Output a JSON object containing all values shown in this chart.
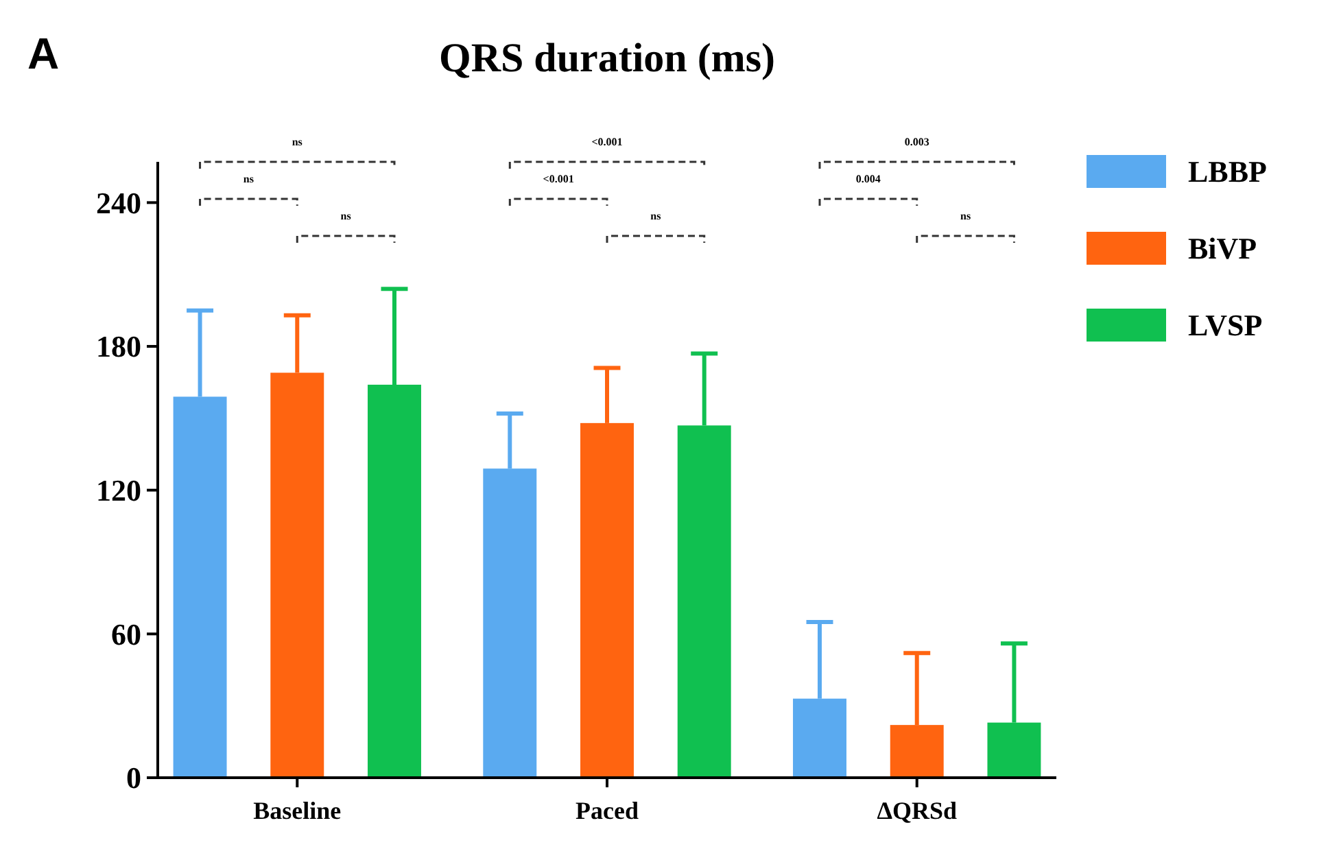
{
  "chart_data": {
    "type": "bar",
    "title": "QRS duration (ms)",
    "categories": [
      "Baseline",
      "Paced",
      "ΔQRSd"
    ],
    "series": [
      {
        "name": "LBBP",
        "color": "#5aaaf0",
        "values": [
          159,
          129,
          33
        ],
        "errors": [
          [
            159,
            195
          ],
          [
            129,
            152
          ],
          [
            33,
            65
          ]
        ]
      },
      {
        "name": "BiVP",
        "color": "#ff6410",
        "values": [
          169,
          148,
          22
        ],
        "errors": [
          [
            169,
            193
          ],
          [
            148,
            171
          ],
          [
            22,
            52
          ]
        ]
      },
      {
        "name": "LVSP",
        "color": "#10c050",
        "values": [
          164,
          147,
          23
        ],
        "errors": [
          [
            164,
            204
          ],
          [
            147,
            177
          ],
          [
            23,
            56
          ]
        ]
      }
    ],
    "ylim": [
      0,
      257
    ],
    "yticks": [
      0,
      60,
      120,
      180,
      240
    ],
    "grid": false,
    "legend": "top right",
    "annotations": [
      "A",
      "ns",
      "ns",
      "ns",
      "<0.001",
      "<0.001",
      "ns",
      "0.003",
      "0.004",
      "ns"
    ]
  }
}
